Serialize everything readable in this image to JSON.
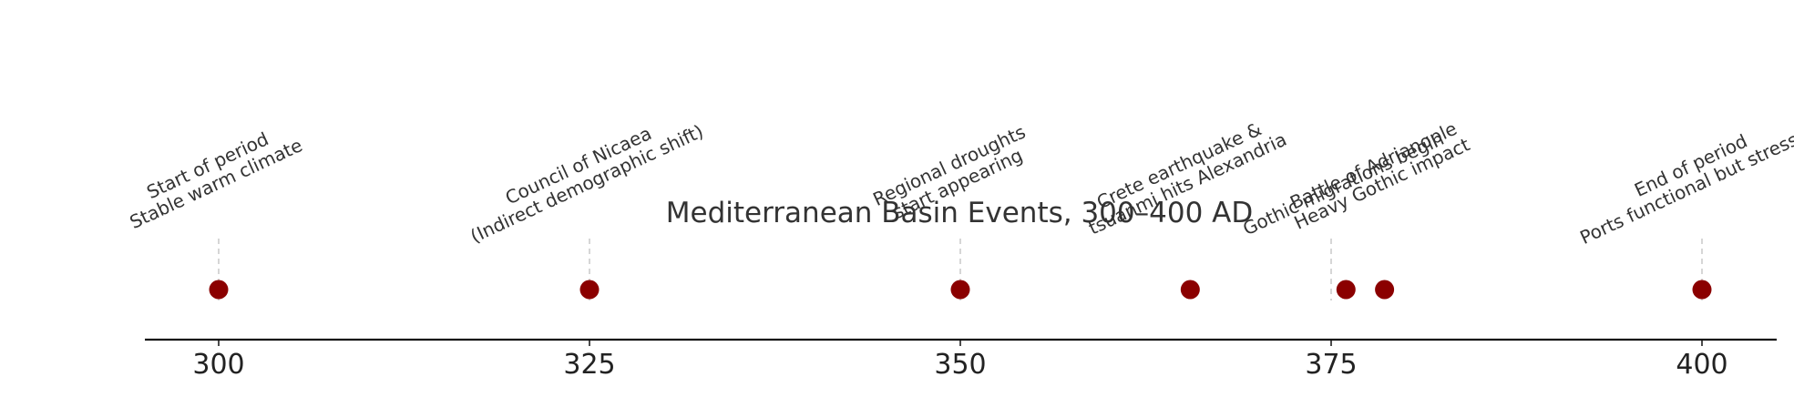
{
  "chart_data": {
    "type": "scatter",
    "title": "Mediterranean Basin Events, 300–400 AD",
    "xlabel": "",
    "ylabel": "",
    "xlim": [
      295,
      405
    ],
    "xticks": [
      300,
      325,
      350,
      375,
      400
    ],
    "grid": false,
    "marker_color": "#8b0000",
    "events": [
      {
        "x": 300,
        "lines": [
          "Start of period",
          "Stable warm climate"
        ]
      },
      {
        "x": 325,
        "lines": [
          "Council of Nicaea",
          "(Indirect demographic shift)"
        ]
      },
      {
        "x": 350,
        "lines": [
          "Regional droughts",
          "start appearing"
        ]
      },
      {
        "x": 365.5,
        "lines": [
          "Crete earthquake &",
          "tsuanmi hits Alexandria"
        ]
      },
      {
        "x": 376,
        "lines": [
          "Gothic migrations begin"
        ]
      },
      {
        "x": 378.6,
        "lines": [
          "Battle of Adrianople",
          "Heavy Gothic impact"
        ]
      },
      {
        "x": 400,
        "lines": [
          "End of period",
          "Ports functional but stressed"
        ]
      }
    ]
  }
}
